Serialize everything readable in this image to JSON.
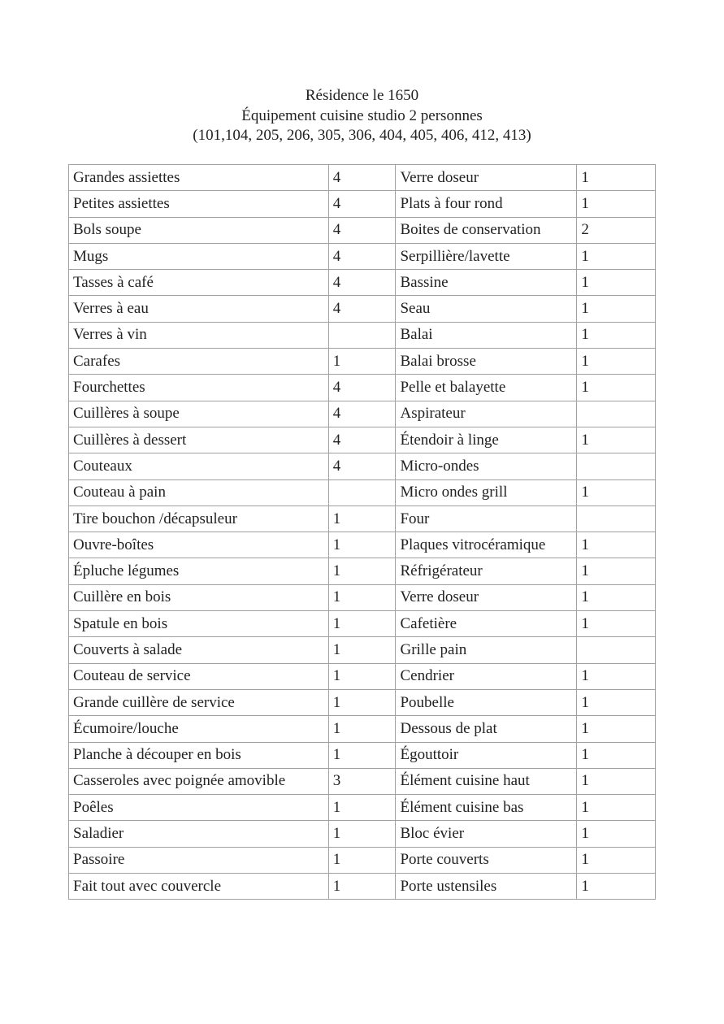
{
  "header": {
    "line1": "Résidence le 1650",
    "line2": "Équipement cuisine studio 2 personnes",
    "line3": "(101,104, 205, 206, 305, 306, 404, 405, 406, 412, 413)"
  },
  "rows": [
    [
      "Grandes assiettes",
      "4",
      "Verre doseur",
      "1"
    ],
    [
      "Petites assiettes",
      "4",
      "Plats à four rond",
      "1"
    ],
    [
      "Bols soupe",
      "4",
      "Boites de conservation",
      "2"
    ],
    [
      "Mugs",
      "4",
      "Serpillière/lavette",
      "1"
    ],
    [
      "Tasses à café",
      "4",
      "Bassine",
      "1"
    ],
    [
      "Verres à eau",
      "4",
      "Seau",
      "1"
    ],
    [
      "Verres à vin",
      "",
      "Balai",
      "1"
    ],
    [
      "Carafes",
      "1",
      "Balai brosse",
      "1"
    ],
    [
      "Fourchettes",
      "4",
      "Pelle et balayette",
      "1"
    ],
    [
      "Cuillères à soupe",
      "4",
      "Aspirateur",
      ""
    ],
    [
      "Cuillères à dessert",
      "4",
      "Étendoir à linge",
      "1"
    ],
    [
      "Couteaux",
      "4",
      "Micro-ondes",
      ""
    ],
    [
      "Couteau à pain",
      "",
      "Micro ondes grill",
      "1"
    ],
    [
      "Tire bouchon /décapsuleur",
      "1",
      "Four",
      ""
    ],
    [
      "Ouvre-boîtes",
      "1",
      "Plaques vitrocéramique",
      "1"
    ],
    [
      "Épluche légumes",
      "1",
      "Réfrigérateur",
      "1"
    ],
    [
      "Cuillère en bois",
      "1",
      "Verre doseur",
      "1"
    ],
    [
      "Spatule en bois",
      "1",
      "Cafetière",
      "1"
    ],
    [
      "Couverts à salade",
      "1",
      "Grille pain",
      ""
    ],
    [
      "Couteau de service",
      "1",
      "Cendrier",
      "1"
    ],
    [
      "Grande cuillère de service",
      "1",
      "Poubelle",
      "1"
    ],
    [
      "Écumoire/louche",
      "1",
      "Dessous de plat",
      "1"
    ],
    [
      "Planche à découper en bois",
      "1",
      "Égouttoir",
      "1"
    ],
    [
      "Casseroles avec poignée amovible",
      "3",
      "Élément cuisine haut",
      "1"
    ],
    [
      "Poêles",
      "1",
      "Élément cuisine bas",
      "1"
    ],
    [
      "Saladier",
      "1",
      "Bloc évier",
      "1"
    ],
    [
      "Passoire",
      "1",
      "Porte couverts",
      "1"
    ],
    [
      "Fait tout avec couvercle",
      "1",
      "Porte ustensiles",
      "1"
    ]
  ]
}
